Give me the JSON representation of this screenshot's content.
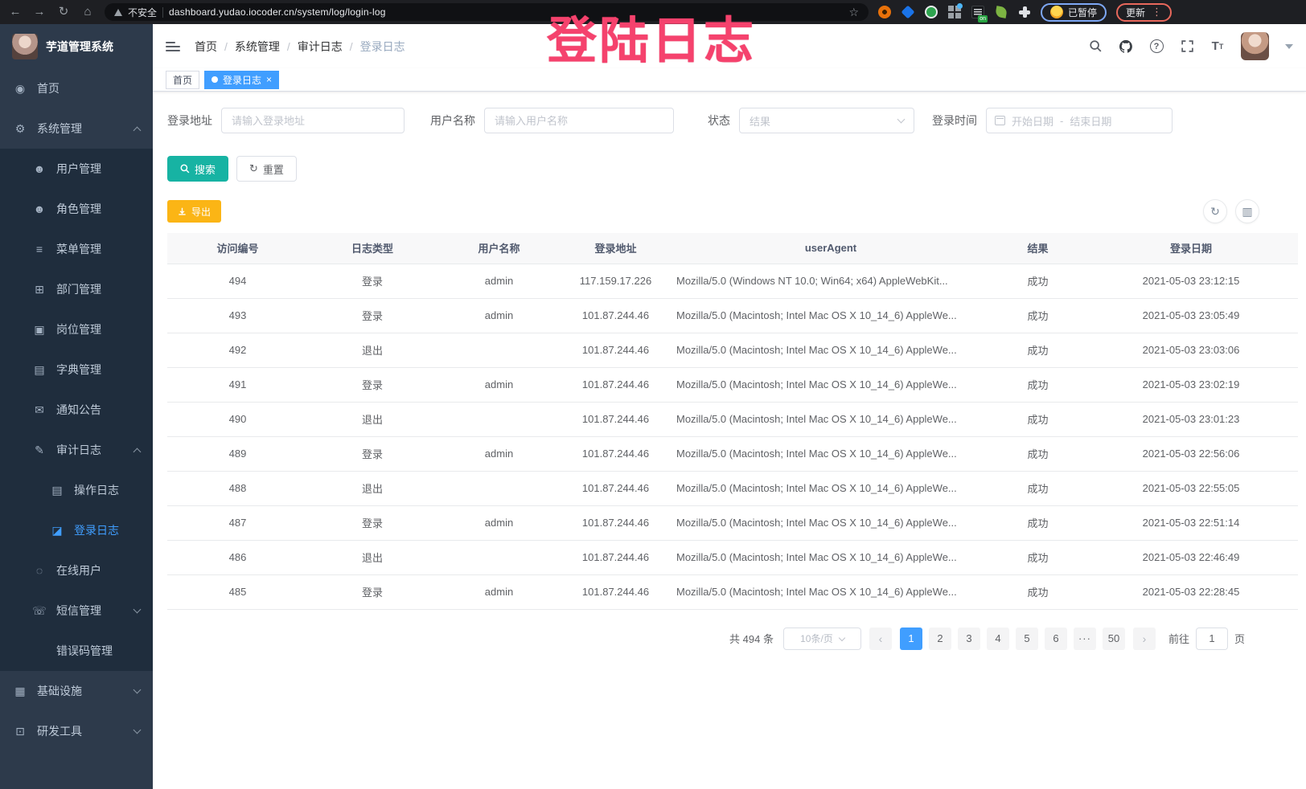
{
  "browser": {
    "security_label": "不安全",
    "url": "dashboard.yudao.iocoder.cn/system/log/login-log",
    "paused_badge": "已暂停",
    "update_button": "更新"
  },
  "watermark": "登陆日志",
  "sidebar": {
    "logo_title": "芋道管理系统",
    "items": [
      {
        "id": "home",
        "label": "首页",
        "icon": "home-icon",
        "level": 0
      },
      {
        "id": "system-management",
        "label": "系统管理",
        "icon": "gear-icon",
        "level": 0,
        "chevron": "up"
      },
      {
        "id": "user-management",
        "label": "用户管理",
        "icon": "user-icon",
        "level": 1
      },
      {
        "id": "role-management",
        "label": "角色管理",
        "icon": "users-icon",
        "level": 1
      },
      {
        "id": "menu-management",
        "label": "菜单管理",
        "icon": "menu-list-icon",
        "level": 1
      },
      {
        "id": "dept-management",
        "label": "部门管理",
        "icon": "org-tree-icon",
        "level": 1
      },
      {
        "id": "post-management",
        "label": "岗位管理",
        "icon": "badge-icon",
        "level": 1
      },
      {
        "id": "dict-management",
        "label": "字典管理",
        "icon": "dictionary-icon",
        "level": 1
      },
      {
        "id": "notice-announcement",
        "label": "通知公告",
        "icon": "announcement-icon",
        "level": 1
      },
      {
        "id": "audit-log",
        "label": "审计日志",
        "icon": "audit-log-icon",
        "level": 1,
        "chevron": "up"
      },
      {
        "id": "operation-log",
        "label": "操作日志",
        "icon": "operation-log-icon",
        "level": 2
      },
      {
        "id": "login-log",
        "label": "登录日志",
        "icon": "login-log-icon",
        "level": 2,
        "active": true
      },
      {
        "id": "online-users",
        "label": "在线用户",
        "icon": "online-users-icon",
        "level": 1
      },
      {
        "id": "sms-management",
        "label": "短信管理",
        "icon": "sms-icon",
        "level": 1,
        "chevron": "down"
      },
      {
        "id": "error-code-management",
        "label": "错误码管理",
        "icon": "error-code-icon",
        "level": 1
      },
      {
        "id": "infrastructure",
        "label": "基础设施",
        "icon": "infrastructure-icon",
        "level": 0,
        "chevron": "down"
      },
      {
        "id": "dev-tools",
        "label": "研发工具",
        "icon": "devtools-icon",
        "level": 0,
        "chevron": "down"
      }
    ]
  },
  "icons": {
    "home-icon": "◉",
    "gear-icon": "⚙",
    "user-icon": "☻",
    "users-icon": "☻",
    "menu-list-icon": "≡",
    "org-tree-icon": "⊞",
    "badge-icon": "▣",
    "dictionary-icon": "▤",
    "announcement-icon": "✉",
    "audit-log-icon": "✎",
    "operation-log-icon": "▤",
    "login-log-icon": "◪",
    "online-users-icon": "◌",
    "sms-icon": "☏",
    "error-code-icon": "</>",
    "infrastructure-icon": "▦",
    "devtools-icon": "⊡"
  },
  "breadcrumb": [
    "首页",
    "系统管理",
    "审计日志",
    "登录日志"
  ],
  "tags": [
    {
      "label": "首页",
      "active": false,
      "closable": false
    },
    {
      "label": "登录日志",
      "active": true,
      "closable": true
    }
  ],
  "filters": {
    "login_address": {
      "label": "登录地址",
      "placeholder": "请输入登录地址"
    },
    "username": {
      "label": "用户名称",
      "placeholder": "请输入用户名称"
    },
    "status": {
      "label": "状态",
      "placeholder": "结果"
    },
    "login_time": {
      "label": "登录时间",
      "start_placeholder": "开始日期",
      "separator": "-",
      "end_placeholder": "结束日期"
    }
  },
  "actions": {
    "search": "搜索",
    "reset": "重置",
    "export": "导出"
  },
  "table": {
    "columns": [
      "访问编号",
      "日志类型",
      "用户名称",
      "登录地址",
      "userAgent",
      "结果",
      "登录日期"
    ],
    "rows": [
      [
        "494",
        "登录",
        "admin",
        "117.159.17.226",
        "Mozilla/5.0 (Windows NT 10.0; Win64; x64) AppleWebKit...",
        "成功",
        "2021-05-03 23:12:15"
      ],
      [
        "493",
        "登录",
        "admin",
        "101.87.244.46",
        "Mozilla/5.0 (Macintosh; Intel Mac OS X 10_14_6) AppleWe...",
        "成功",
        "2021-05-03 23:05:49"
      ],
      [
        "492",
        "退出",
        "",
        "101.87.244.46",
        "Mozilla/5.0 (Macintosh; Intel Mac OS X 10_14_6) AppleWe...",
        "成功",
        "2021-05-03 23:03:06"
      ],
      [
        "491",
        "登录",
        "admin",
        "101.87.244.46",
        "Mozilla/5.0 (Macintosh; Intel Mac OS X 10_14_6) AppleWe...",
        "成功",
        "2021-05-03 23:02:19"
      ],
      [
        "490",
        "退出",
        "",
        "101.87.244.46",
        "Mozilla/5.0 (Macintosh; Intel Mac OS X 10_14_6) AppleWe...",
        "成功",
        "2021-05-03 23:01:23"
      ],
      [
        "489",
        "登录",
        "admin",
        "101.87.244.46",
        "Mozilla/5.0 (Macintosh; Intel Mac OS X 10_14_6) AppleWe...",
        "成功",
        "2021-05-03 22:56:06"
      ],
      [
        "488",
        "退出",
        "",
        "101.87.244.46",
        "Mozilla/5.0 (Macintosh; Intel Mac OS X 10_14_6) AppleWe...",
        "成功",
        "2021-05-03 22:55:05"
      ],
      [
        "487",
        "登录",
        "admin",
        "101.87.244.46",
        "Mozilla/5.0 (Macintosh; Intel Mac OS X 10_14_6) AppleWe...",
        "成功",
        "2021-05-03 22:51:14"
      ],
      [
        "486",
        "退出",
        "",
        "101.87.244.46",
        "Mozilla/5.0 (Macintosh; Intel Mac OS X 10_14_6) AppleWe...",
        "成功",
        "2021-05-03 22:46:49"
      ],
      [
        "485",
        "登录",
        "admin",
        "101.87.244.46",
        "Mozilla/5.0 (Macintosh; Intel Mac OS X 10_14_6) AppleWe...",
        "成功",
        "2021-05-03 22:28:45"
      ]
    ]
  },
  "pagination": {
    "total": "共 494 条",
    "page_size": "10条/页",
    "pages": [
      "1",
      "2",
      "3",
      "4",
      "5",
      "6",
      "···",
      "50"
    ],
    "active_page": "1",
    "goto_label": "前往",
    "goto_value": "1",
    "goto_suffix": "页"
  },
  "colors": {
    "primary": "#409eff",
    "search_button": "#17b3a3",
    "export_button": "#fbb515",
    "watermark": "#f5426d",
    "sidebar_bg": "#2d3a4b",
    "submenu_bg": "#1f2d3d",
    "active_link": "#409eff"
  }
}
